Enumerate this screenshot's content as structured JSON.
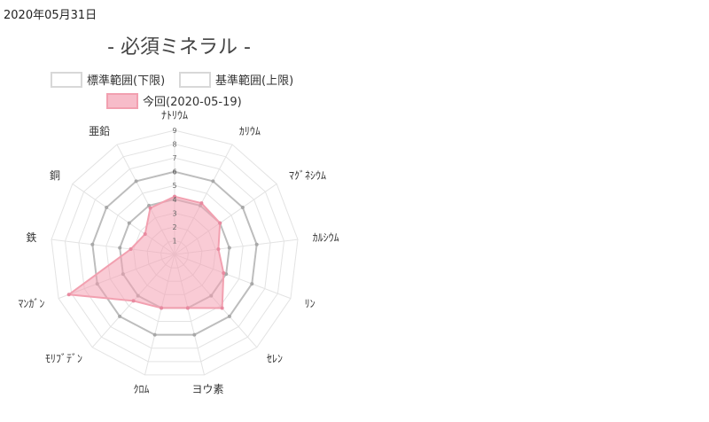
{
  "date": "2020年05月31日",
  "chart_data": {
    "type": "radar",
    "title": "- 必須ミネラル -",
    "axes": [
      "ﾅﾄﾘｳﾑ",
      "ｶﾘｳﾑ",
      "ﾏｸﾞﾈｼｳﾑ",
      "ｶﾙｼｳﾑ",
      "ﾘﾝ",
      "ｾﾚﾝ",
      "ヨウ素",
      "ｸﾛﾑ",
      "ﾓﾘﾌﾞﾃﾞﾝ",
      "ﾏﾝｶﾞﾝ",
      "鉄",
      "銅",
      "亜鉛"
    ],
    "rlim": [
      0,
      9
    ],
    "ticks": [
      "1",
      "2",
      "3",
      "4",
      "5",
      "6",
      "7",
      "8",
      "9"
    ],
    "legend_position": "top",
    "series": [
      {
        "name": "標準範囲(下限)",
        "values": [
          4,
          4,
          4,
          4,
          4,
          4,
          4,
          4,
          4,
          4,
          4,
          4,
          4
        ],
        "stroke": "#bdbdbd",
        "fill": "none"
      },
      {
        "name": "基準範囲(上限)",
        "values": [
          6,
          6,
          6,
          6,
          6,
          6,
          6,
          6,
          6,
          6,
          6,
          6,
          6
        ],
        "stroke": "#bdbdbd",
        "fill": "none"
      },
      {
        "name": "今回(2020-05-19)",
        "values": [
          4.2,
          4.2,
          4,
          3.2,
          3.8,
          5.2,
          4,
          4,
          4.5,
          8.2,
          3.2,
          2.6,
          3.8
        ],
        "stroke": "#f2a0b0",
        "fill": "rgba(244,160,178,0.55)"
      }
    ]
  }
}
